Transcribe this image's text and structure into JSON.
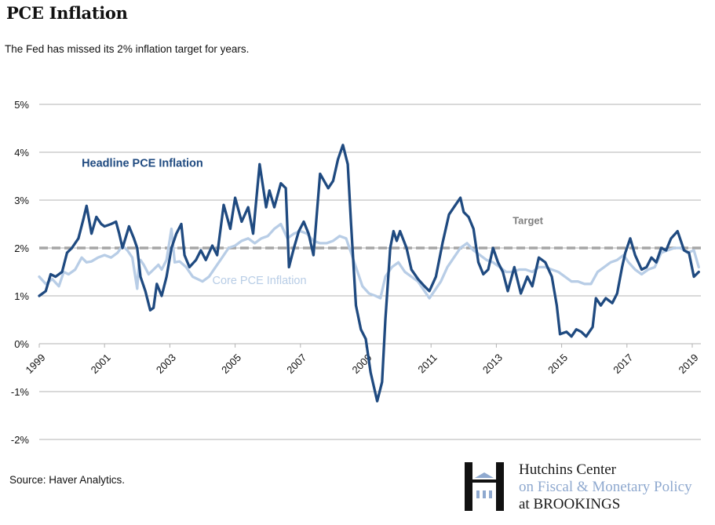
{
  "header": {
    "title": "PCE Inflation",
    "subtitle": "The Fed has missed its 2% inflation target for years."
  },
  "footer": {
    "source": "Source: Haver Analytics.",
    "logo": {
      "line1": "Hutchins Center",
      "line2": "on Fiscal & Monetary Policy",
      "line3": "at BROOKINGS",
      "icon": "hutchins-h-building-icon"
    }
  },
  "colors": {
    "headline": "#1f4a80",
    "core": "#b8cde6",
    "target": "#a6a6a6",
    "grid": "#b3b3b3",
    "logo_blue": "#8fa9cf"
  },
  "chart_data": {
    "type": "line",
    "title": "PCE Inflation",
    "subtitle": "The Fed has missed its 2% inflation target for years.",
    "xlabel": "",
    "ylabel": "",
    "xlim": [
      1999,
      2019.3
    ],
    "ylim": [
      -2,
      5
    ],
    "yticks": [
      5,
      4,
      3,
      2,
      1,
      0,
      -1,
      -2
    ],
    "ytick_labels": [
      "5%",
      "4%",
      "3%",
      "2%",
      "1%",
      "0%",
      "-1%",
      "-2%"
    ],
    "xticks": [
      1999,
      2001,
      2003,
      2005,
      2007,
      2009,
      2011,
      2013,
      2015,
      2017,
      2019
    ],
    "xtick_labels": [
      "1999",
      "2001",
      "2003",
      "2005",
      "2007",
      "2009",
      "2011",
      "2013",
      "2015",
      "2017",
      "2019"
    ],
    "grid": true,
    "legend": "inline-labels",
    "annotations": [
      {
        "text": "Headline PCE Inflation",
        "series": "headline",
        "x": 2000.3,
        "y": 3.7
      },
      {
        "text": "Core PCE Inflation",
        "series": "core",
        "x": 2004.3,
        "y": 1.25
      },
      {
        "text": "Target",
        "series": "target",
        "x": 2013.5,
        "y": 2.5
      }
    ],
    "target": {
      "name": "Target",
      "value": 2.0
    },
    "series": [
      {
        "name": "Headline PCE Inflation",
        "key": "headline",
        "x": [
          1999.0,
          1999.2,
          1999.35,
          1999.5,
          1999.7,
          1999.85,
          2000.0,
          2000.2,
          2000.35,
          2000.45,
          2000.6,
          2000.75,
          2000.9,
          2001.0,
          2001.2,
          2001.35,
          2001.45,
          2001.55,
          2001.75,
          2001.9,
          2002.0,
          2002.1,
          2002.25,
          2002.4,
          2002.5,
          2002.6,
          2002.75,
          2002.9,
          2003.05,
          2003.2,
          2003.35,
          2003.45,
          2003.6,
          2003.8,
          2003.95,
          2004.1,
          2004.3,
          2004.45,
          2004.65,
          2004.85,
          2005.0,
          2005.2,
          2005.4,
          2005.55,
          2005.75,
          2005.95,
          2006.05,
          2006.2,
          2006.4,
          2006.55,
          2006.65,
          2006.8,
          2006.95,
          2007.1,
          2007.25,
          2007.4,
          2007.6,
          2007.85,
          2008.0,
          2008.15,
          2008.3,
          2008.45,
          2008.55,
          2008.7,
          2008.85,
          2009.0,
          2009.15,
          2009.35,
          2009.5,
          2009.6,
          2009.75,
          2009.85,
          2009.95,
          2010.05,
          2010.25,
          2010.4,
          2010.6,
          2010.8,
          2010.95,
          2011.15,
          2011.35,
          2011.55,
          2011.75,
          2011.9,
          2012.0,
          2012.15,
          2012.3,
          2012.45,
          2012.6,
          2012.75,
          2012.9,
          2013.05,
          2013.2,
          2013.35,
          2013.55,
          2013.75,
          2013.95,
          2014.1,
          2014.3,
          2014.5,
          2014.7,
          2014.85,
          2014.95,
          2015.15,
          2015.3,
          2015.45,
          2015.6,
          2015.75,
          2015.95,
          2016.05,
          2016.2,
          2016.35,
          2016.55,
          2016.7,
          2016.85,
          2016.95,
          2017.1,
          2017.25,
          2017.45,
          2017.6,
          2017.75,
          2017.9,
          2018.05,
          2018.2,
          2018.35,
          2018.55,
          2018.75,
          2018.9,
          2019.05,
          2019.2
        ],
        "values": [
          1.0,
          1.1,
          1.45,
          1.4,
          1.5,
          1.9,
          2.0,
          2.2,
          2.6,
          2.88,
          2.3,
          2.65,
          2.5,
          2.45,
          2.5,
          2.55,
          2.3,
          2.0,
          2.45,
          2.2,
          2.0,
          1.4,
          1.1,
          0.7,
          0.75,
          1.25,
          1.0,
          1.4,
          2.0,
          2.3,
          2.5,
          1.85,
          1.6,
          1.75,
          1.95,
          1.75,
          2.05,
          1.85,
          2.9,
          2.4,
          3.05,
          2.55,
          2.85,
          2.3,
          3.75,
          2.85,
          3.2,
          2.85,
          3.35,
          3.25,
          1.6,
          2.0,
          2.35,
          2.55,
          2.3,
          1.85,
          3.55,
          3.25,
          3.4,
          3.85,
          4.15,
          3.75,
          2.5,
          0.8,
          0.3,
          0.1,
          -0.6,
          -1.2,
          -0.8,
          0.5,
          2.0,
          2.35,
          2.15,
          2.35,
          2.0,
          1.55,
          1.35,
          1.2,
          1.1,
          1.4,
          2.1,
          2.7,
          2.9,
          3.05,
          2.75,
          2.65,
          2.4,
          1.7,
          1.45,
          1.55,
          2.0,
          1.7,
          1.5,
          1.1,
          1.6,
          1.05,
          1.4,
          1.2,
          1.8,
          1.7,
          1.4,
          0.8,
          0.2,
          0.25,
          0.15,
          0.3,
          0.25,
          0.15,
          0.35,
          0.95,
          0.8,
          0.95,
          0.85,
          1.05,
          1.6,
          1.9,
          2.2,
          1.85,
          1.55,
          1.6,
          1.8,
          1.7,
          2.0,
          1.95,
          2.2,
          2.35,
          1.95,
          1.9,
          1.4,
          1.5
        ]
      },
      {
        "name": "Core PCE Inflation",
        "key": "core",
        "x": [
          1999.0,
          1999.2,
          1999.4,
          1999.6,
          1999.75,
          1999.9,
          2000.1,
          2000.3,
          2000.45,
          2000.6,
          2000.8,
          2001.0,
          2001.2,
          2001.4,
          2001.55,
          2001.7,
          2001.85,
          2002.0,
          2002.05,
          2002.1,
          2002.2,
          2002.35,
          2002.5,
          2002.65,
          2002.75,
          2002.9,
          2003.05,
          2003.15,
          2003.3,
          2003.5,
          2003.7,
          2003.85,
          2004.0,
          2004.2,
          2004.4,
          2004.6,
          2004.8,
          2005.0,
          2005.2,
          2005.4,
          2005.6,
          2005.8,
          2006.0,
          2006.2,
          2006.4,
          2006.6,
          2006.8,
          2007.0,
          2007.2,
          2007.4,
          2007.6,
          2007.8,
          2008.0,
          2008.2,
          2008.4,
          2008.55,
          2008.75,
          2008.9,
          2009.1,
          2009.3,
          2009.45,
          2009.6,
          2009.8,
          2010.0,
          2010.2,
          2010.4,
          2010.6,
          2010.8,
          2010.95,
          2011.1,
          2011.3,
          2011.5,
          2011.7,
          2011.9,
          2012.1,
          2012.3,
          2012.5,
          2012.7,
          2012.9,
          2013.1,
          2013.3,
          2013.5,
          2013.7,
          2013.9,
          2014.1,
          2014.3,
          2014.5,
          2014.7,
          2014.9,
          2015.1,
          2015.3,
          2015.5,
          2015.7,
          2015.9,
          2016.1,
          2016.3,
          2016.5,
          2016.7,
          2016.9,
          2017.05,
          2017.25,
          2017.45,
          2017.65,
          2017.85,
          2018.05,
          2018.25,
          2018.45,
          2018.65,
          2018.85,
          2019.05,
          2019.2
        ],
        "values": [
          1.4,
          1.25,
          1.35,
          1.2,
          1.5,
          1.45,
          1.55,
          1.8,
          1.7,
          1.72,
          1.8,
          1.85,
          1.8,
          1.9,
          2.05,
          1.95,
          1.8,
          1.15,
          1.7,
          1.75,
          1.65,
          1.45,
          1.55,
          1.65,
          1.55,
          1.75,
          2.4,
          1.7,
          1.72,
          1.6,
          1.4,
          1.35,
          1.3,
          1.4,
          1.6,
          1.8,
          2.0,
          2.05,
          2.15,
          2.2,
          2.1,
          2.2,
          2.25,
          2.4,
          2.5,
          2.2,
          2.3,
          2.35,
          2.3,
          2.15,
          2.1,
          2.1,
          2.15,
          2.25,
          2.2,
          1.9,
          1.5,
          1.2,
          1.05,
          1.0,
          0.95,
          1.4,
          1.6,
          1.7,
          1.5,
          1.4,
          1.3,
          1.1,
          0.95,
          1.1,
          1.3,
          1.6,
          1.8,
          2.0,
          2.1,
          1.95,
          1.85,
          1.75,
          1.7,
          1.6,
          1.5,
          1.5,
          1.55,
          1.55,
          1.5,
          1.6,
          1.6,
          1.55,
          1.5,
          1.4,
          1.3,
          1.3,
          1.25,
          1.25,
          1.5,
          1.6,
          1.7,
          1.75,
          1.85,
          1.7,
          1.55,
          1.45,
          1.55,
          1.6,
          1.9,
          1.95,
          2.0,
          2.0,
          1.9,
          1.95,
          1.6
        ]
      }
    ]
  }
}
